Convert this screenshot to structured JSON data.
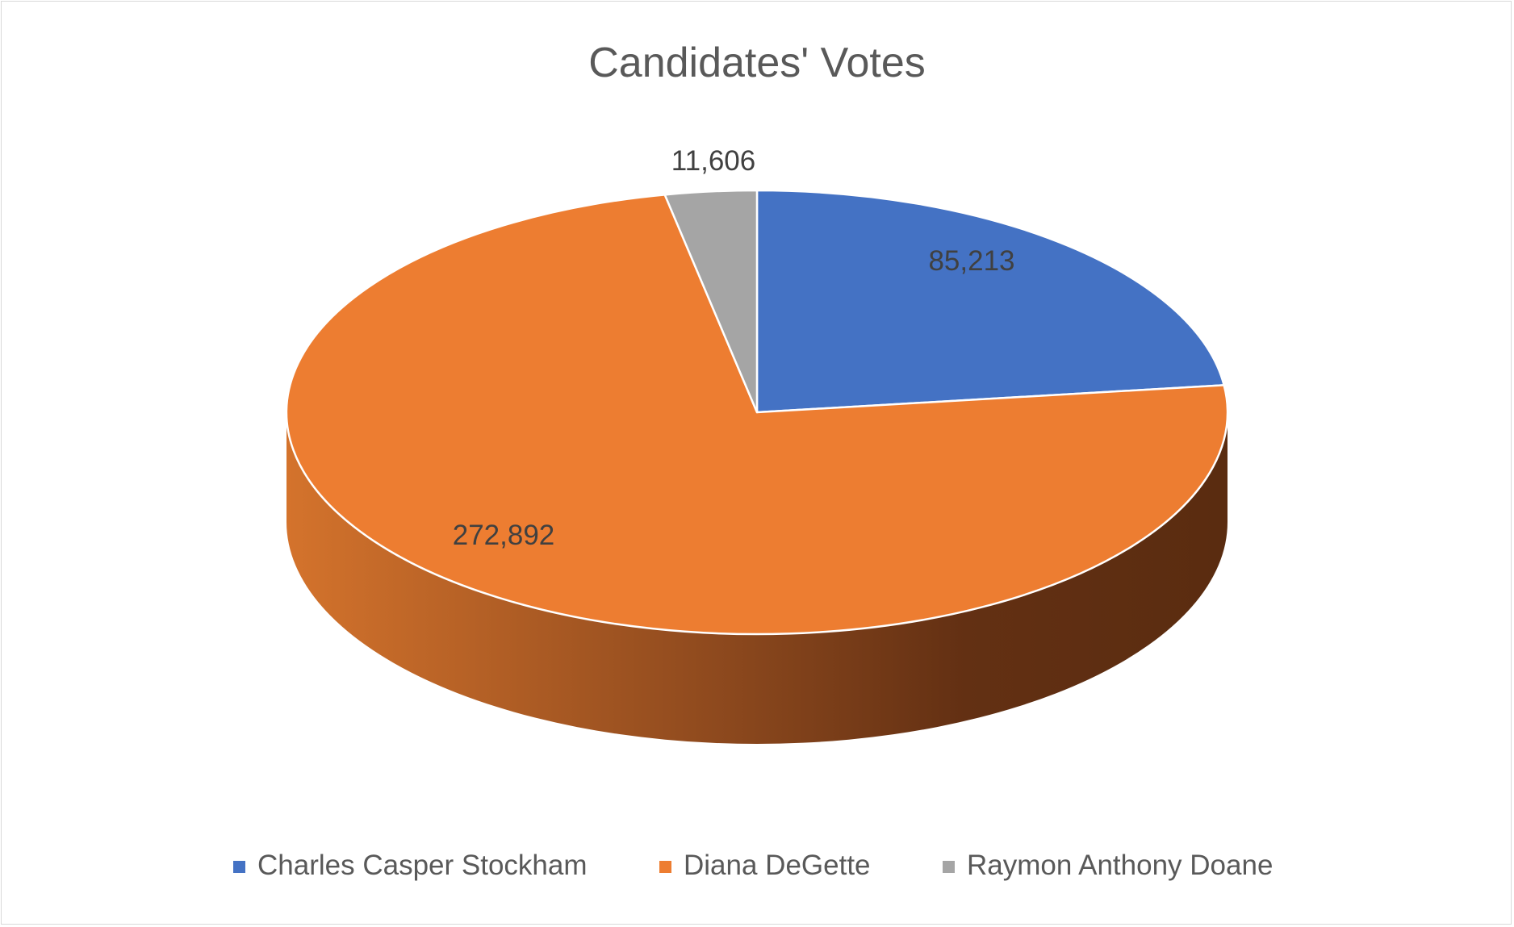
{
  "chart_data": {
    "type": "pie",
    "title": "Candidates' Votes",
    "categories": [
      "Charles Casper Stockham",
      "Diana DeGette",
      "Raymon Anthony Doane"
    ],
    "values": [
      85213,
      272892,
      11606
    ],
    "data_labels": [
      "85,213",
      "272,892",
      "11,606"
    ],
    "colors": [
      "#4472c4",
      "#ed7d31",
      "#a5a5a5"
    ],
    "legend_position": "bottom",
    "style": "3d"
  }
}
